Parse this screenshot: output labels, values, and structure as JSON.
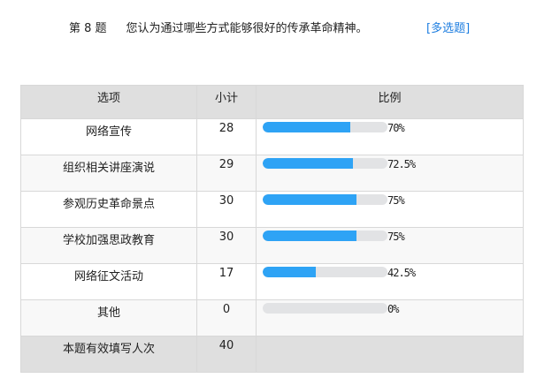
{
  "question": {
    "number": "第 8 题",
    "text": "您认为通过哪些方式能够很好的传承革命精神。",
    "type": "[多选题]"
  },
  "table": {
    "headers": [
      "选项",
      "小计",
      "比例"
    ],
    "rows": [
      {
        "option": "网络宣传",
        "count": "28",
        "percent": "70%",
        "value": 70
      },
      {
        "option": "组织相关讲座演说",
        "count": "29",
        "percent": "72.5%",
        "value": 72.5
      },
      {
        "option": "参观历史革命景点",
        "count": "30",
        "percent": "75%",
        "value": 75
      },
      {
        "option": "学校加强思政教育",
        "count": "30",
        "percent": "75%",
        "value": 75
      },
      {
        "option": "网络征文活动",
        "count": "17",
        "percent": "42.5%",
        "value": 42.5
      },
      {
        "option": "其他",
        "count": "0",
        "percent": "0%",
        "value": 0
      }
    ],
    "total": {
      "label": "本题有效填写人次",
      "count": "40"
    }
  },
  "colors": {
    "bar_fill": "#2ea3f5",
    "bar_track": "#e2e3e5",
    "link": "#1e7ee0"
  }
}
